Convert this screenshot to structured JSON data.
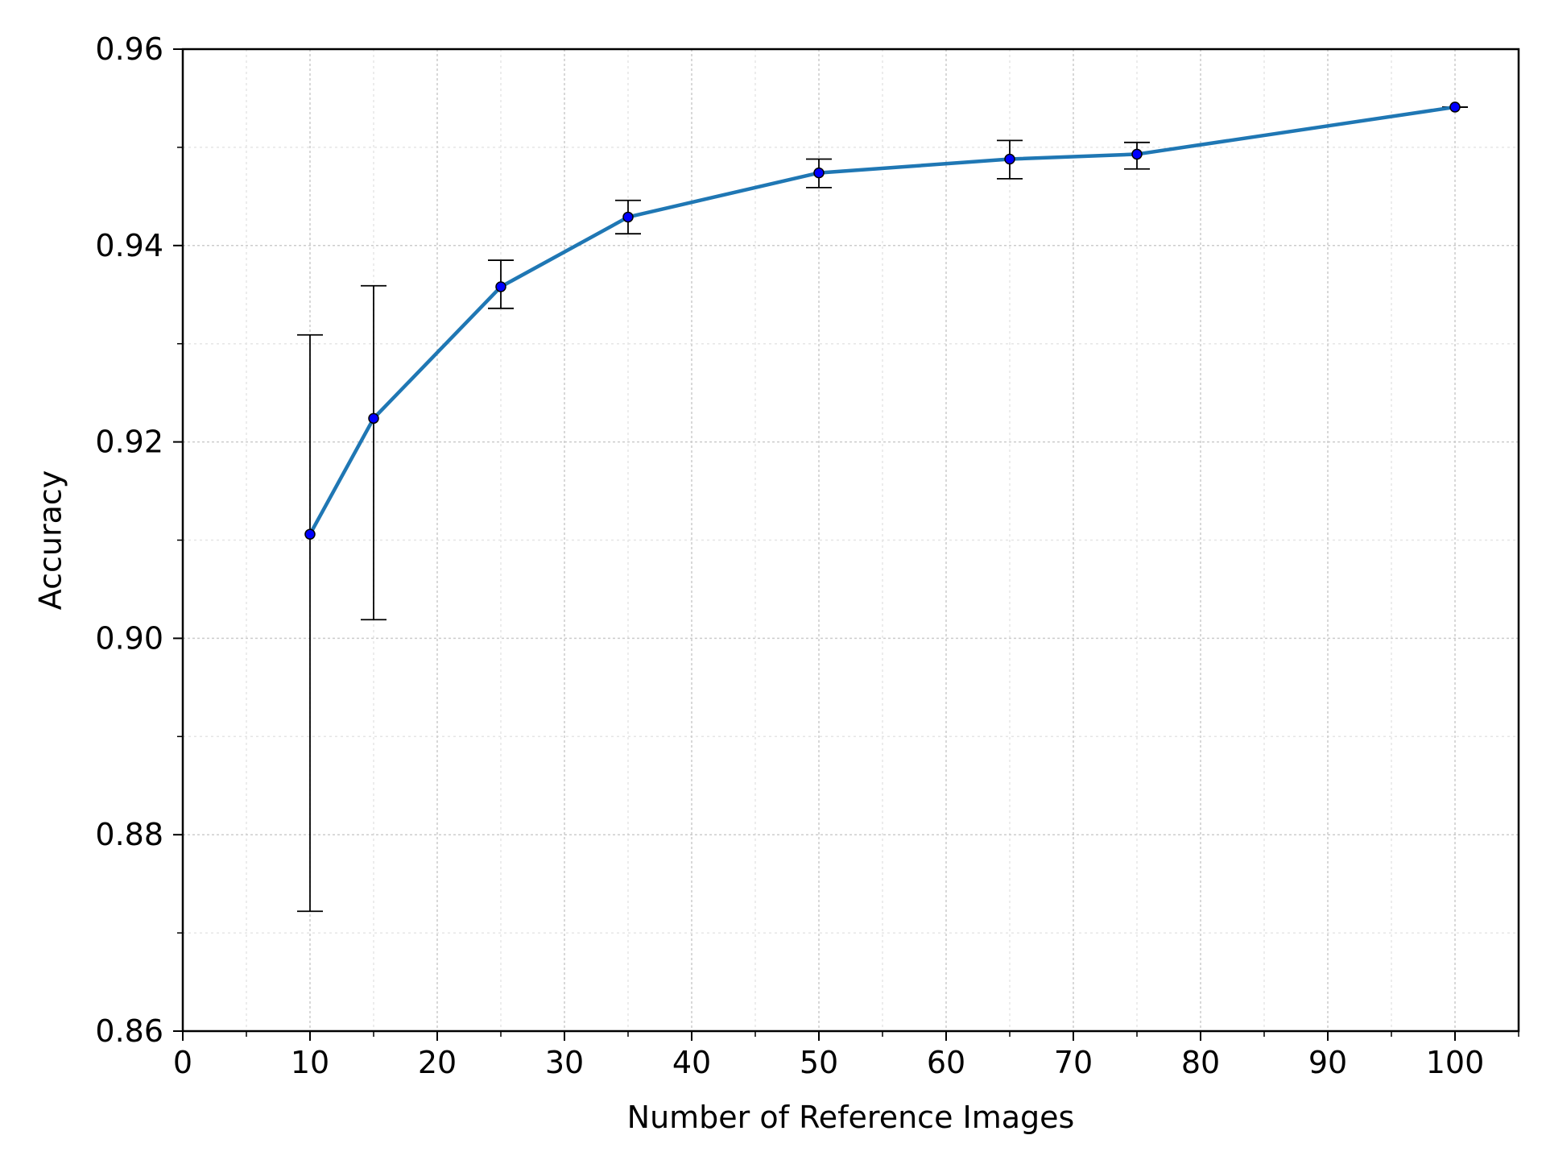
{
  "chart_data": {
    "type": "line",
    "title": "",
    "xlabel": "Number of Reference Images",
    "ylabel": "Accuracy",
    "xlim": [
      0,
      105
    ],
    "ylim": [
      0.86,
      0.96
    ],
    "x_ticks": [
      0,
      10,
      20,
      30,
      40,
      50,
      60,
      70,
      80,
      90,
      100
    ],
    "x_tick_labels": [
      "0",
      "10",
      "20",
      "30",
      "40",
      "50",
      "60",
      "70",
      "80",
      "90",
      "100"
    ],
    "y_ticks": [
      0.86,
      0.88,
      0.9,
      0.92,
      0.94,
      0.96
    ],
    "y_tick_labels": [
      "0.86",
      "0.88",
      "0.90",
      "0.92",
      "0.94",
      "0.96"
    ],
    "x_minor_step": 5,
    "y_minor_step": 0.01,
    "grid": true,
    "legend": "none",
    "series": [
      {
        "x": [
          10,
          15,
          25,
          35,
          50,
          65,
          75,
          100
        ],
        "values": [
          0.9106,
          0.9224,
          0.9358,
          0.9429,
          0.9474,
          0.9488,
          0.9493,
          0.9541
        ],
        "error_lower": [
          0.8722,
          0.9019,
          0.9336,
          0.9412,
          0.9459,
          0.9468,
          0.9478,
          0.9541
        ],
        "error_upper": [
          0.9309,
          0.9359,
          0.9385,
          0.9446,
          0.9488,
          0.9507,
          0.9505,
          0.9541
        ],
        "line_color": "#1f77b4",
        "marker_color": "#0000ff",
        "error_color": "#000000"
      }
    ]
  }
}
